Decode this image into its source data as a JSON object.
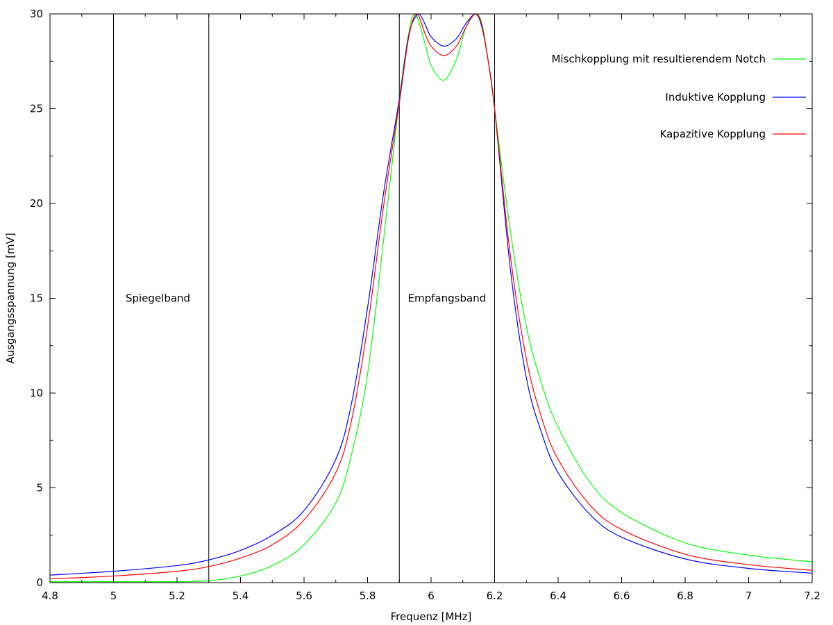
{
  "chart_data": {
    "type": "line",
    "title": "",
    "xlabel": "Frequenz [MHz]",
    "ylabel": "Ausgangsspannung [mV]",
    "xlim": [
      4.8,
      7.2
    ],
    "ylim": [
      0,
      30
    ],
    "x_ticks": [
      "4.8",
      "5",
      "5.2",
      "5.4",
      "5.6",
      "5.8",
      "6",
      "6.2",
      "6.4",
      "6.6",
      "6.8",
      "7",
      "7.2"
    ],
    "x_tick_values": [
      4.8,
      5.0,
      5.2,
      5.4,
      5.6,
      5.8,
      6.0,
      6.2,
      6.4,
      6.6,
      6.8,
      7.0,
      7.2
    ],
    "y_ticks": [
      "0",
      "5",
      "10",
      "15",
      "20",
      "25",
      "30"
    ],
    "y_tick_values": [
      0,
      5,
      10,
      15,
      20,
      25,
      30
    ],
    "grid": false,
    "legend_position": "top-right",
    "vertical_lines": [
      5.0,
      5.3,
      5.9,
      6.2
    ],
    "annotations": [
      {
        "text": "Spiegelband",
        "x": 5.14,
        "y": 15
      },
      {
        "text": "Empfangsband",
        "x": 6.05,
        "y": 15
      }
    ],
    "series": [
      {
        "name": "Mischkopplung mit resultierendem Notch",
        "color": "#00ff00",
        "x": [
          4.8,
          5.0,
          5.2,
          5.3,
          5.4,
          5.5,
          5.6,
          5.7,
          5.75,
          5.8,
          5.85,
          5.9,
          5.93,
          5.95,
          5.98,
          6.0,
          6.04,
          6.08,
          6.11,
          6.14,
          6.16,
          6.18,
          6.2,
          6.25,
          6.3,
          6.35,
          6.4,
          6.5,
          6.6,
          6.8,
          7.0,
          7.2
        ],
        "y": [
          0.05,
          0.05,
          0.05,
          0.1,
          0.35,
          0.9,
          2.0,
          4.2,
          6.8,
          11.0,
          18.0,
          25.5,
          29.0,
          30.0,
          28.5,
          27.3,
          26.5,
          27.6,
          29.3,
          30.0,
          29.5,
          27.5,
          25.0,
          18.5,
          13.5,
          10.4,
          8.2,
          5.3,
          3.7,
          2.1,
          1.45,
          1.1
        ]
      },
      {
        "name": "Induktive Kopplung",
        "color": "#0000ff",
        "x": [
          4.8,
          5.0,
          5.2,
          5.3,
          5.4,
          5.5,
          5.6,
          5.7,
          5.75,
          5.8,
          5.85,
          5.9,
          5.93,
          5.96,
          5.98,
          6.0,
          6.04,
          6.08,
          6.11,
          6.14,
          6.16,
          6.18,
          6.2,
          6.25,
          6.3,
          6.35,
          6.4,
          6.5,
          6.6,
          6.8,
          7.0,
          7.2
        ],
        "y": [
          0.4,
          0.6,
          0.9,
          1.2,
          1.7,
          2.5,
          3.8,
          6.5,
          9.5,
          14.5,
          20.5,
          25.5,
          28.9,
          30.0,
          29.5,
          28.8,
          28.3,
          28.7,
          29.5,
          30.0,
          29.3,
          27.5,
          25.0,
          16.5,
          10.8,
          7.8,
          5.8,
          3.6,
          2.4,
          1.25,
          0.75,
          0.5
        ]
      },
      {
        "name": "Kapazitive Kopplung",
        "color": "#ff0000",
        "x": [
          4.8,
          5.0,
          5.2,
          5.3,
          5.4,
          5.5,
          5.6,
          5.7,
          5.75,
          5.8,
          5.85,
          5.9,
          5.93,
          5.955,
          5.98,
          6.0,
          6.04,
          6.08,
          6.11,
          6.14,
          6.16,
          6.18,
          6.2,
          6.25,
          6.3,
          6.35,
          6.4,
          6.5,
          6.6,
          6.8,
          7.0,
          7.2
        ],
        "y": [
          0.2,
          0.35,
          0.6,
          0.85,
          1.3,
          2.0,
          3.3,
          5.8,
          8.6,
          13.5,
          19.8,
          25.3,
          28.8,
          30.0,
          29.0,
          28.3,
          27.8,
          28.3,
          29.3,
          30.0,
          29.4,
          27.5,
          25.0,
          17.2,
          11.8,
          8.6,
          6.5,
          4.1,
          2.8,
          1.5,
          0.95,
          0.65
        ]
      }
    ]
  }
}
